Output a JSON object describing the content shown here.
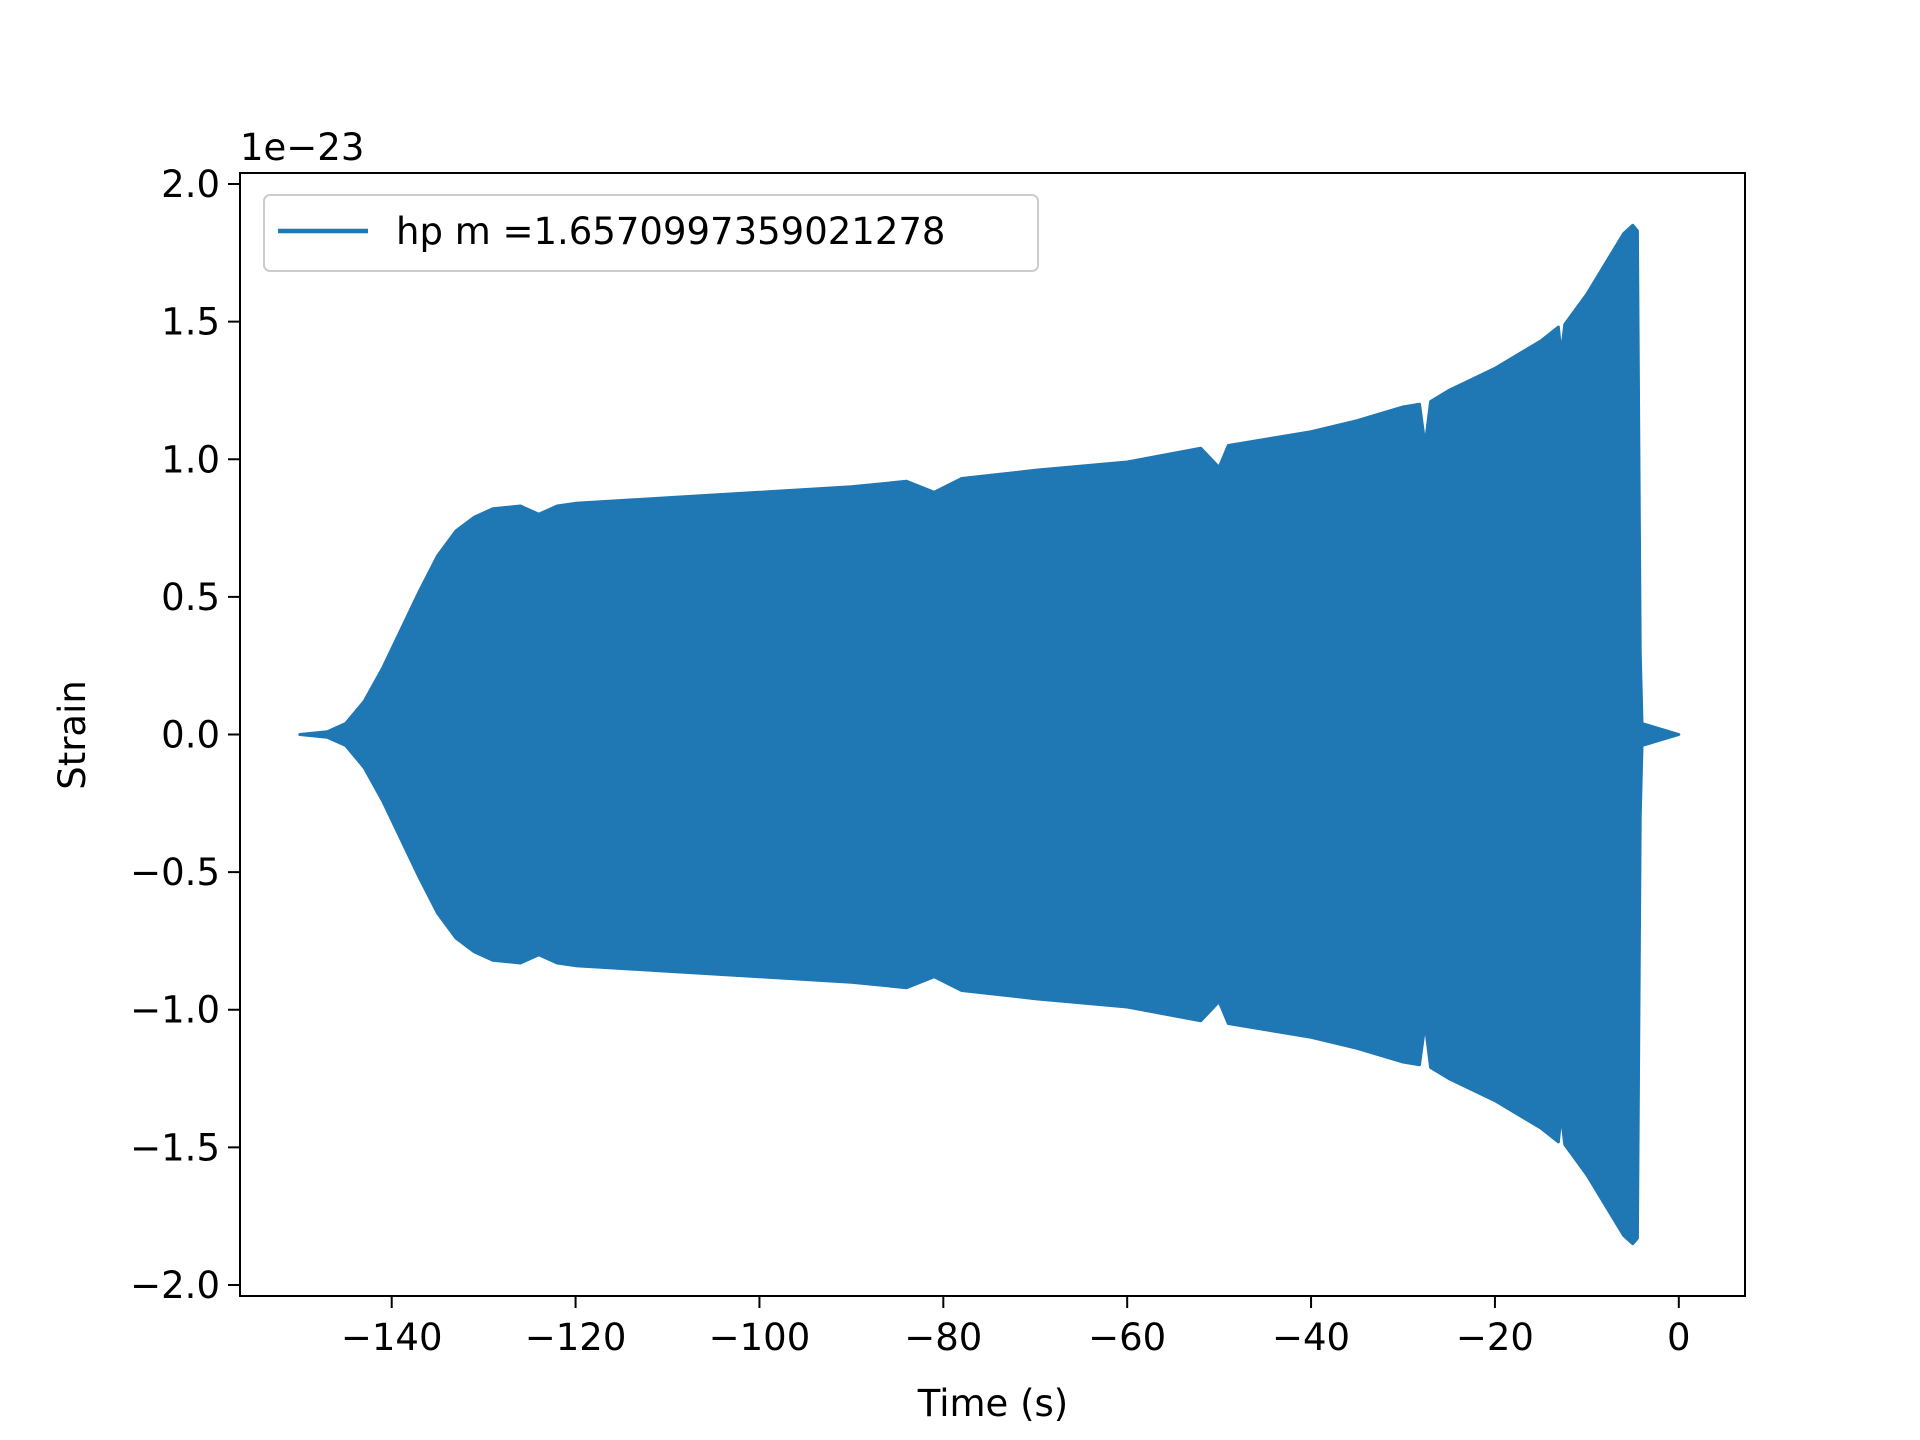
{
  "chart_data": {
    "type": "line",
    "title": "",
    "xlabel": "Time (s)",
    "ylabel": "Strain",
    "y_offset_label": "1e−23",
    "xlim": [
      -156.5,
      7.2
    ],
    "ylim": [
      -2.04,
      2.04
    ],
    "x_ticks": [
      -140,
      -120,
      -100,
      -80,
      -60,
      -40,
      -20,
      0
    ],
    "x_tick_labels": [
      "−140",
      "−120",
      "−100",
      "−80",
      "−60",
      "−40",
      "−20",
      "0"
    ],
    "y_ticks": [
      -2.0,
      -1.5,
      -1.0,
      -0.5,
      0.0,
      0.5,
      1.0,
      1.5,
      2.0
    ],
    "y_tick_labels": [
      "−2.0",
      "−1.5",
      "−1.0",
      "−0.5",
      "0.0",
      "0.5",
      "1.0",
      "1.5",
      "2.0"
    ],
    "grid": false,
    "legend_position": "upper-left",
    "series": [
      {
        "name": "hp m =1.6570997359021278",
        "color": "#1f77b4",
        "envelope_upper": [
          [
            -150,
            0.0
          ],
          [
            -147,
            0.01
          ],
          [
            -145,
            0.04
          ],
          [
            -143,
            0.12
          ],
          [
            -141,
            0.24
          ],
          [
            -139,
            0.38
          ],
          [
            -137,
            0.52
          ],
          [
            -135,
            0.65
          ],
          [
            -133,
            0.74
          ],
          [
            -131,
            0.79
          ],
          [
            -129,
            0.82
          ],
          [
            -126,
            0.83
          ],
          [
            -124,
            0.8
          ],
          [
            -122,
            0.83
          ],
          [
            -120,
            0.84
          ],
          [
            -110,
            0.86
          ],
          [
            -100,
            0.88
          ],
          [
            -90,
            0.9
          ],
          [
            -84,
            0.92
          ],
          [
            -81,
            0.88
          ],
          [
            -78,
            0.93
          ],
          [
            -70,
            0.96
          ],
          [
            -60,
            0.99
          ],
          [
            -52,
            1.04
          ],
          [
            -50,
            0.97
          ],
          [
            -49,
            1.05
          ],
          [
            -40,
            1.1
          ],
          [
            -35,
            1.14
          ],
          [
            -30,
            1.19
          ],
          [
            -28.2,
            1.2
          ],
          [
            -27.6,
            1.05
          ],
          [
            -27,
            1.21
          ],
          [
            -25,
            1.25
          ],
          [
            -20,
            1.33
          ],
          [
            -15,
            1.43
          ],
          [
            -13.1,
            1.48
          ],
          [
            -12.8,
            1.38
          ],
          [
            -12.4,
            1.49
          ],
          [
            -10,
            1.6
          ],
          [
            -8,
            1.71
          ],
          [
            -6,
            1.82
          ],
          [
            -5,
            1.85
          ],
          [
            -4.5,
            1.83
          ],
          [
            -4.2,
            0.3
          ],
          [
            -4,
            0.04
          ],
          [
            -2,
            0.02
          ],
          [
            0,
            0.0
          ]
        ],
        "envelope_lower": [
          [
            -150,
            0.0
          ],
          [
            -147,
            -0.01
          ],
          [
            -145,
            -0.04
          ],
          [
            -143,
            -0.12
          ],
          [
            -141,
            -0.24
          ],
          [
            -139,
            -0.38
          ],
          [
            -137,
            -0.52
          ],
          [
            -135,
            -0.65
          ],
          [
            -133,
            -0.74
          ],
          [
            -131,
            -0.79
          ],
          [
            -129,
            -0.82
          ],
          [
            -126,
            -0.83
          ],
          [
            -124,
            -0.8
          ],
          [
            -122,
            -0.83
          ],
          [
            -120,
            -0.84
          ],
          [
            -110,
            -0.86
          ],
          [
            -100,
            -0.88
          ],
          [
            -90,
            -0.9
          ],
          [
            -84,
            -0.92
          ],
          [
            -81,
            -0.88
          ],
          [
            -78,
            -0.93
          ],
          [
            -70,
            -0.96
          ],
          [
            -60,
            -0.99
          ],
          [
            -52,
            -1.04
          ],
          [
            -50,
            -0.97
          ],
          [
            -49,
            -1.05
          ],
          [
            -40,
            -1.1
          ],
          [
            -35,
            -1.14
          ],
          [
            -30,
            -1.19
          ],
          [
            -28.2,
            -1.2
          ],
          [
            -27.6,
            -1.05
          ],
          [
            -27,
            -1.21
          ],
          [
            -25,
            -1.25
          ],
          [
            -20,
            -1.33
          ],
          [
            -15,
            -1.43
          ],
          [
            -13.1,
            -1.48
          ],
          [
            -12.8,
            -1.38
          ],
          [
            -12.4,
            -1.49
          ],
          [
            -10,
            -1.6
          ],
          [
            -8,
            -1.71
          ],
          [
            -6,
            -1.82
          ],
          [
            -5,
            -1.85
          ],
          [
            -4.5,
            -1.83
          ],
          [
            -4.2,
            -0.3
          ],
          [
            -4,
            -0.04
          ],
          [
            -2,
            -0.02
          ],
          [
            0,
            0.0
          ]
        ]
      }
    ]
  }
}
